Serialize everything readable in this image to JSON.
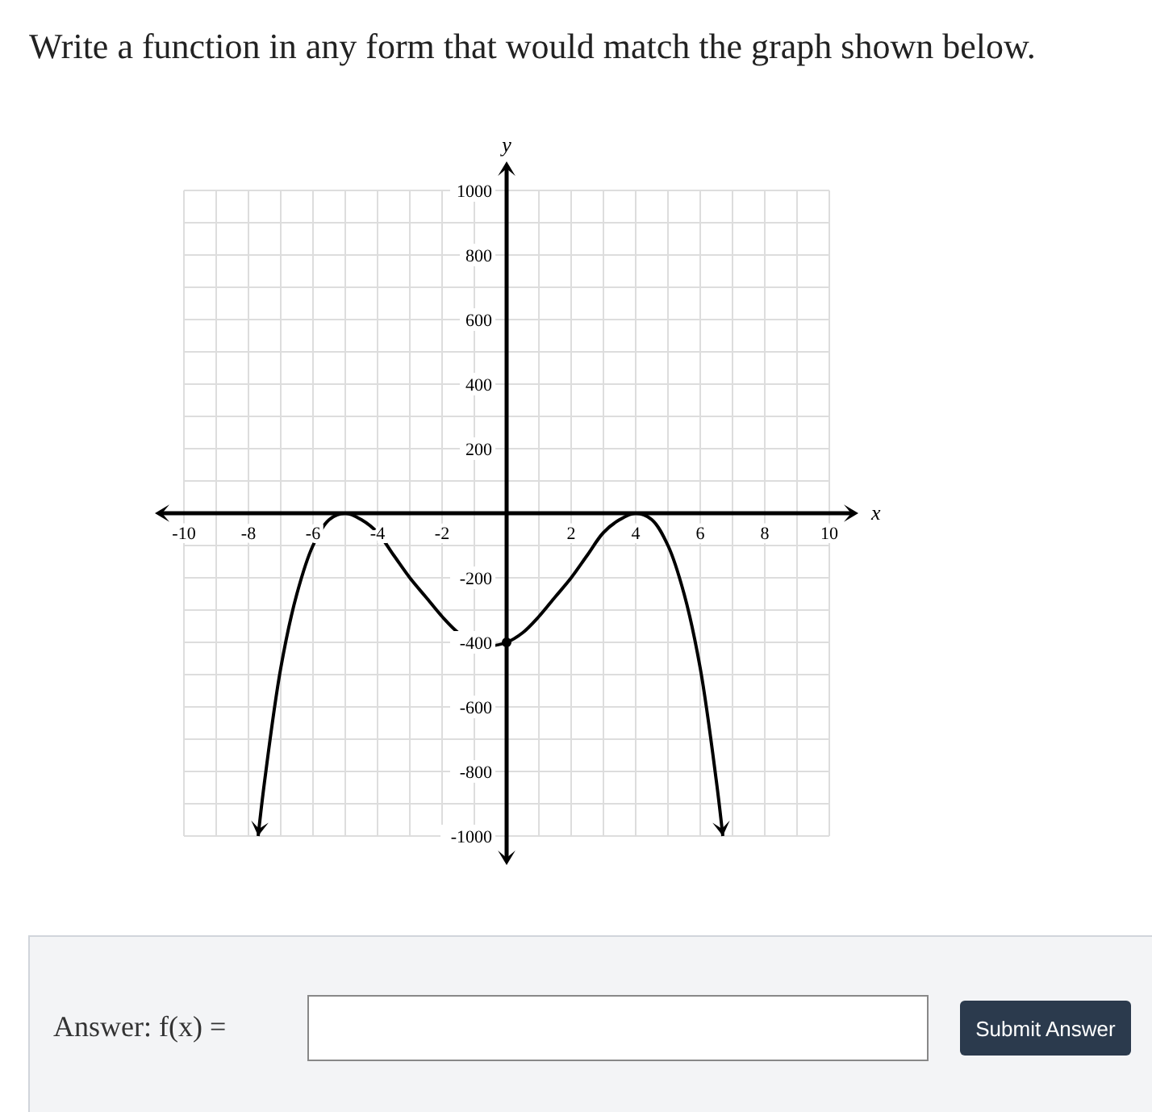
{
  "chart_data": {
    "type": "line",
    "title": "Write a function in any form that would match the graph shown below.",
    "xlabel": "x",
    "ylabel": "y",
    "xlim": [
      -10,
      10
    ],
    "ylim": [
      -1000,
      1000
    ],
    "xticks": [
      -10,
      -8,
      -6,
      -4,
      -2,
      2,
      4,
      6,
      8,
      10
    ],
    "yticks": [
      -1000,
      -800,
      -600,
      -400,
      -200,
      200,
      400,
      600,
      800,
      1000
    ],
    "grid": true,
    "marker": "none",
    "line_style": "solid",
    "series": [
      {
        "color": "#000000",
        "x": [
          -7.7,
          -7.5,
          -7,
          -6.5,
          -6,
          -5.5,
          -5,
          -4.5,
          -4,
          -3.5,
          -3,
          -2.5,
          -2,
          -1.5,
          -1,
          -0.5,
          0,
          0.5,
          1,
          1.5,
          2,
          2.5,
          3,
          3.5,
          4,
          4.5,
          5,
          5.5,
          6,
          6.5,
          6.7
        ],
        "values": [
          -1000,
          -830,
          -480,
          -250,
          -100,
          -20,
          0,
          -20,
          -60,
          -130,
          -200,
          -260,
          -320,
          -370,
          -400,
          -410,
          -400,
          -370,
          -320,
          -260,
          -200,
          -130,
          -60,
          -20,
          0,
          -20,
          -100,
          -250,
          -480,
          -830,
          -1000
        ]
      },
      {
        "type": "scatter",
        "color": "#000000",
        "marker": "circle",
        "x": [
          0
        ],
        "values": [
          -400
        ]
      }
    ],
    "annotations": [
      "Answer: f(x) =",
      "Submit Answer"
    ]
  }
}
